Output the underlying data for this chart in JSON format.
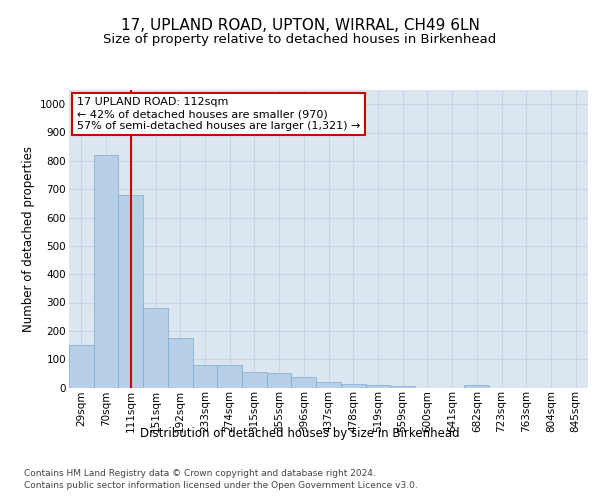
{
  "title1": "17, UPLAND ROAD, UPTON, WIRRAL, CH49 6LN",
  "title2": "Size of property relative to detached houses in Birkenhead",
  "xlabel": "Distribution of detached houses by size in Birkenhead",
  "ylabel": "Number of detached properties",
  "categories": [
    "29sqm",
    "70sqm",
    "111sqm",
    "151sqm",
    "192sqm",
    "233sqm",
    "274sqm",
    "315sqm",
    "355sqm",
    "396sqm",
    "437sqm",
    "478sqm",
    "519sqm",
    "559sqm",
    "600sqm",
    "641sqm",
    "682sqm",
    "723sqm",
    "763sqm",
    "804sqm",
    "845sqm"
  ],
  "values": [
    150,
    820,
    680,
    280,
    175,
    80,
    78,
    53,
    50,
    38,
    20,
    12,
    8,
    5,
    0,
    0,
    10,
    0,
    0,
    0,
    0
  ],
  "bar_color": "#b8cfe8",
  "bar_edge_color": "#7aaad0",
  "grid_color": "#c8d4e8",
  "background_color": "#dce6f0",
  "vline_x": 2.0,
  "vline_color": "#cc0000",
  "annotation_text": "17 UPLAND ROAD: 112sqm\n← 42% of detached houses are smaller (970)\n57% of semi-detached houses are larger (1,321) →",
  "annotation_box_color": "#cc0000",
  "ylim": [
    0,
    1050
  ],
  "yticks": [
    0,
    100,
    200,
    300,
    400,
    500,
    600,
    700,
    800,
    900,
    1000
  ],
  "footnote1": "Contains HM Land Registry data © Crown copyright and database right 2024.",
  "footnote2": "Contains public sector information licensed under the Open Government Licence v3.0.",
  "title_fontsize": 11,
  "subtitle_fontsize": 9.5,
  "tick_fontsize": 7.5,
  "label_fontsize": 8.5,
  "annot_fontsize": 8,
  "ylabel_fontsize": 8.5,
  "footnote_fontsize": 6.5
}
